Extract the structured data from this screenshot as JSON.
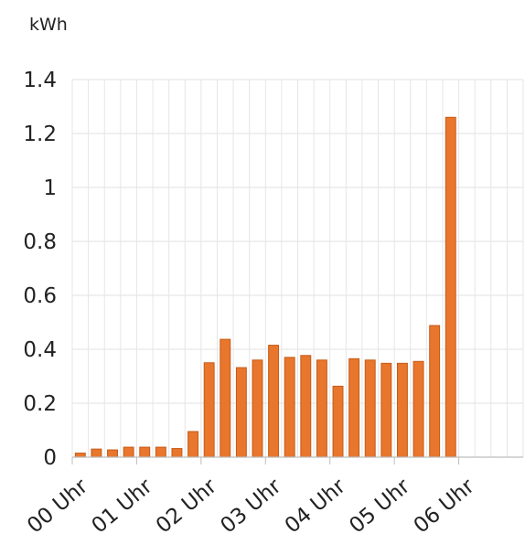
{
  "chart_data": {
    "type": "bar",
    "ylabel": "kWh",
    "ylim": [
      0,
      1.4
    ],
    "yticks": [
      "0",
      "0.2",
      "0.4",
      "0.6",
      "0.8",
      "1",
      "1.2",
      "1.4"
    ],
    "xticks": [
      "00 Uhr",
      "01 Uhr",
      "02 Uhr",
      "03 Uhr",
      "04 Uhr",
      "05 Uhr",
      "06 Uhr"
    ],
    "slots_per_hour": 4,
    "total_slots": 24,
    "values": [
      0.015,
      0.03,
      0.027,
      0.037,
      0.037,
      0.037,
      0.032,
      0.095,
      0.35,
      0.437,
      0.332,
      0.36,
      0.415,
      0.37,
      0.377,
      0.36,
      0.263,
      0.365,
      0.36,
      0.348,
      0.348,
      0.355,
      0.488,
      1.26
    ],
    "grid": true,
    "bar_color": "#e8762d",
    "bar_border_color": "#c65a16"
  }
}
